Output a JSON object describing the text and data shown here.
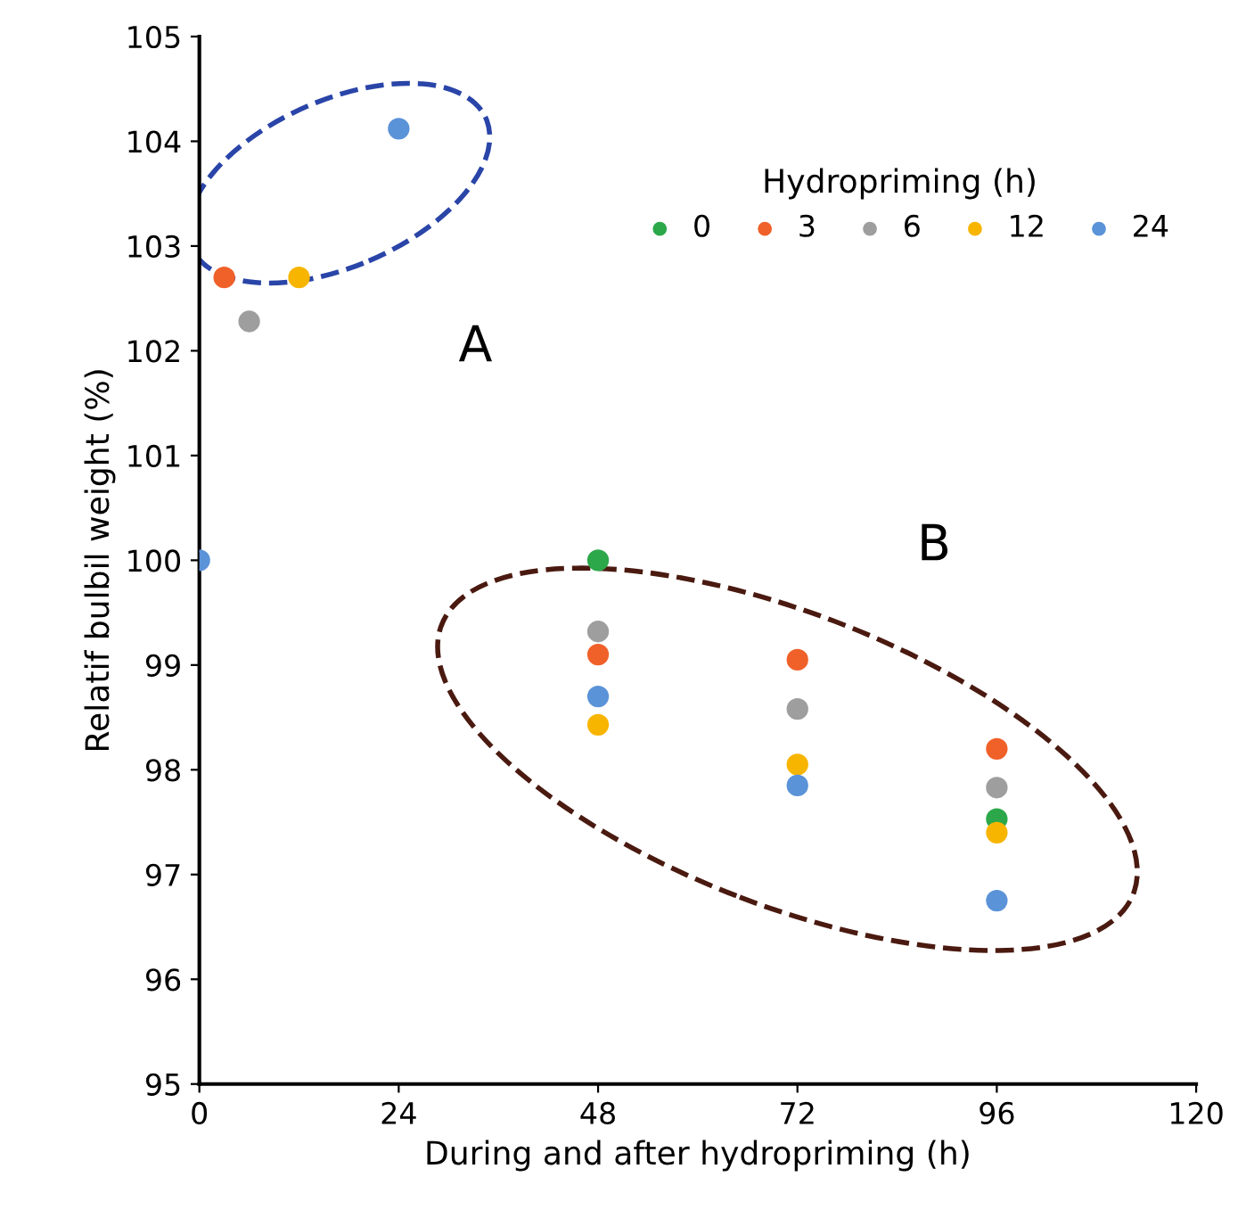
{
  "chart_data": {
    "type": "scatter",
    "xlabel": "During and after hydropriming (h)",
    "ylabel": "Relatif bulbil weight (%)",
    "legend_title": "Hydropriming (h)",
    "legend": "top right",
    "marker": "circle",
    "grid": false,
    "xlim": [
      0,
      120
    ],
    "xticks": [
      0,
      24,
      48,
      72,
      96,
      120
    ],
    "ylim": [
      95,
      105
    ],
    "yticks": [
      95,
      96,
      97,
      98,
      99,
      100,
      101,
      102,
      103,
      104,
      105
    ],
    "series": [
      {
        "name": "0",
        "color": "#2ca84a",
        "x": [
          48,
          72,
          96
        ],
        "values": [
          100,
          null,
          97.53
        ]
      },
      {
        "name": "3",
        "color": "#f0612a",
        "x": [
          3,
          48,
          72,
          96
        ],
        "values": [
          102.7,
          99.1,
          99.05,
          98.2
        ]
      },
      {
        "name": "6",
        "color": "#9e9e9e",
        "x": [
          6,
          48,
          72,
          96
        ],
        "values": [
          102.28,
          99.32,
          98.58,
          97.83
        ]
      },
      {
        "name": "12",
        "color": "#f7b500",
        "x": [
          12,
          48,
          72,
          96
        ],
        "values": [
          102.7,
          98.43,
          98.05,
          97.4
        ]
      },
      {
        "name": "24",
        "color": "#5b93d8",
        "x": [
          0,
          24,
          48,
          72,
          96
        ],
        "values": [
          100,
          104.12,
          98.7,
          97.85,
          96.75
        ]
      }
    ],
    "annotations": [
      "A",
      "B"
    ]
  }
}
